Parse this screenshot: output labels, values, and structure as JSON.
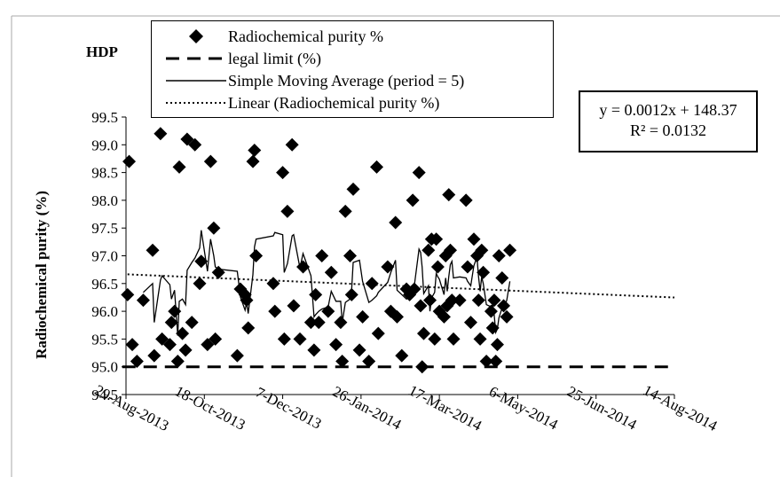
{
  "panel_label": "HDP",
  "legend": {
    "purity": "Radiochemical purity %",
    "legal": "legal limit (%)",
    "sma": "Simple Moving Average (period = 5)",
    "linear": "Linear (Radiochemical purity %)"
  },
  "equation": {
    "line1": "y = 0.0012x + 148.37",
    "line2": "R² = 0.0132"
  },
  "chart_data": {
    "type": "scatter",
    "ylabel": "Radiochemical purity (%)",
    "xlabel": "",
    "x_axis": "date",
    "xlim": [
      "2013-08-29",
      "2014-08-14"
    ],
    "ylim": [
      94.5,
      99.5
    ],
    "y_ticks": [
      "94.5",
      "95.0",
      "95.5",
      "96.0",
      "96.5",
      "97.0",
      "97.5",
      "98.0",
      "98.5",
      "99.0",
      "99.5"
    ],
    "x_ticks": [
      "29-Aug-2013",
      "18-Oct-2013",
      "7-Dec-2013",
      "26-Jan-2014",
      "17-Mar-2014",
      "6-May-2014",
      "25-Jun-2014",
      "14-Aug-2014"
    ],
    "legal_limit": 95.0,
    "trendline": {
      "slope": 0.0012,
      "intercept": 148.37,
      "r2": 0.0132
    },
    "series": [
      {
        "name": "Radiochemical purity %",
        "points": [
          [
            "2013-08-30",
            96.3
          ],
          [
            "2013-08-31",
            98.7
          ],
          [
            "2013-09-02",
            95.4
          ],
          [
            "2013-09-05",
            95.1
          ],
          [
            "2013-09-09",
            96.2
          ],
          [
            "2013-09-15",
            97.1
          ],
          [
            "2013-09-16",
            95.2
          ],
          [
            "2013-09-20",
            99.2
          ],
          [
            "2013-09-21",
            95.5
          ],
          [
            "2013-09-26",
            95.4
          ],
          [
            "2013-09-27",
            95.8
          ],
          [
            "2013-09-29",
            96.0
          ],
          [
            "2013-10-01",
            95.1
          ],
          [
            "2013-10-02",
            98.6
          ],
          [
            "2013-10-04",
            95.6
          ],
          [
            "2013-10-06",
            95.3
          ],
          [
            "2013-10-07",
            99.1
          ],
          [
            "2013-10-10",
            95.8
          ],
          [
            "2013-10-12",
            99.0
          ],
          [
            "2013-10-15",
            96.5
          ],
          [
            "2013-10-16",
            96.9
          ],
          [
            "2013-10-20",
            95.4
          ],
          [
            "2013-10-22",
            98.7
          ],
          [
            "2013-10-24",
            97.5
          ],
          [
            "2013-10-25",
            95.5
          ],
          [
            "2013-10-27",
            96.7
          ],
          [
            "2013-11-08",
            95.2
          ],
          [
            "2013-11-10",
            96.4
          ],
          [
            "2013-11-13",
            96.3
          ],
          [
            "2013-11-14",
            96.2
          ],
          [
            "2013-11-15",
            95.7
          ],
          [
            "2013-11-18",
            98.7
          ],
          [
            "2013-11-19",
            98.9
          ],
          [
            "2013-11-20",
            97.0
          ],
          [
            "2013-12-01",
            96.5
          ],
          [
            "2013-12-02",
            96.0
          ],
          [
            "2013-12-07",
            98.5
          ],
          [
            "2013-12-08",
            95.5
          ],
          [
            "2013-12-10",
            97.8
          ],
          [
            "2013-12-13",
            99.0
          ],
          [
            "2013-12-14",
            96.1
          ],
          [
            "2013-12-18",
            95.5
          ],
          [
            "2013-12-20",
            96.8
          ],
          [
            "2013-12-25",
            95.8
          ],
          [
            "2013-12-27",
            95.3
          ],
          [
            "2013-12-28",
            96.3
          ],
          [
            "2013-12-30",
            95.8
          ],
          [
            "2014-01-01",
            97.0
          ],
          [
            "2014-01-05",
            96.0
          ],
          [
            "2014-01-07",
            96.7
          ],
          [
            "2014-01-10",
            95.4
          ],
          [
            "2014-01-13",
            95.8
          ],
          [
            "2014-01-14",
            95.1
          ],
          [
            "2014-01-16",
            97.8
          ],
          [
            "2014-01-19",
            97.0
          ],
          [
            "2014-01-20",
            96.3
          ],
          [
            "2014-01-21",
            98.2
          ],
          [
            "2014-01-25",
            95.3
          ],
          [
            "2014-01-27",
            95.9
          ],
          [
            "2014-01-31",
            95.1
          ],
          [
            "2014-02-02",
            96.5
          ],
          [
            "2014-02-05",
            98.6
          ],
          [
            "2014-02-06",
            95.6
          ],
          [
            "2014-02-12",
            96.8
          ],
          [
            "2014-02-14",
            96.0
          ],
          [
            "2014-02-17",
            97.6
          ],
          [
            "2014-02-18",
            95.9
          ],
          [
            "2014-02-21",
            95.2
          ],
          [
            "2014-02-24",
            96.4
          ],
          [
            "2014-02-26",
            96.3
          ],
          [
            "2014-02-28",
            98.0
          ],
          [
            "2014-03-01",
            96.4
          ],
          [
            "2014-03-04",
            98.5
          ],
          [
            "2014-03-05",
            96.1
          ],
          [
            "2014-03-06",
            95.0
          ],
          [
            "2014-03-07",
            95.6
          ],
          [
            "2014-03-10",
            97.1
          ],
          [
            "2014-03-11",
            96.2
          ],
          [
            "2014-03-12",
            97.3
          ],
          [
            "2014-03-14",
            95.5
          ],
          [
            "2014-03-15",
            97.3
          ],
          [
            "2014-03-16",
            96.8
          ],
          [
            "2014-03-17",
            96.0
          ],
          [
            "2014-03-20",
            95.9
          ],
          [
            "2014-03-21",
            97.0
          ],
          [
            "2014-03-22",
            96.1
          ],
          [
            "2014-03-23",
            98.1
          ],
          [
            "2014-03-24",
            97.1
          ],
          [
            "2014-03-25",
            96.2
          ],
          [
            "2014-03-26",
            95.5
          ],
          [
            "2014-03-30",
            96.2
          ],
          [
            "2014-04-03",
            98.0
          ],
          [
            "2014-04-04",
            96.8
          ],
          [
            "2014-04-06",
            95.8
          ],
          [
            "2014-04-08",
            97.3
          ],
          [
            "2014-04-10",
            97.0
          ],
          [
            "2014-04-11",
            96.2
          ],
          [
            "2014-04-12",
            95.5
          ],
          [
            "2014-04-13",
            97.1
          ],
          [
            "2014-04-14",
            96.7
          ],
          [
            "2014-04-16",
            95.1
          ],
          [
            "2014-04-19",
            96.0
          ],
          [
            "2014-04-20",
            95.7
          ],
          [
            "2014-04-21",
            96.2
          ],
          [
            "2014-04-22",
            95.1
          ],
          [
            "2014-04-23",
            95.4
          ],
          [
            "2014-04-24",
            97.0
          ],
          [
            "2014-04-26",
            96.6
          ],
          [
            "2014-04-27",
            96.1
          ],
          [
            "2014-04-29",
            95.9
          ],
          [
            "2014-05-01",
            97.1
          ]
        ]
      },
      {
        "name": "legal limit (%)",
        "values": [
          95.0,
          95.0
        ]
      },
      {
        "name": "Simple Moving Average (period = 5)",
        "period": 5
      },
      {
        "name": "Linear (Radiochemical purity %)"
      }
    ],
    "grid": false,
    "legend_position": "top-left"
  }
}
